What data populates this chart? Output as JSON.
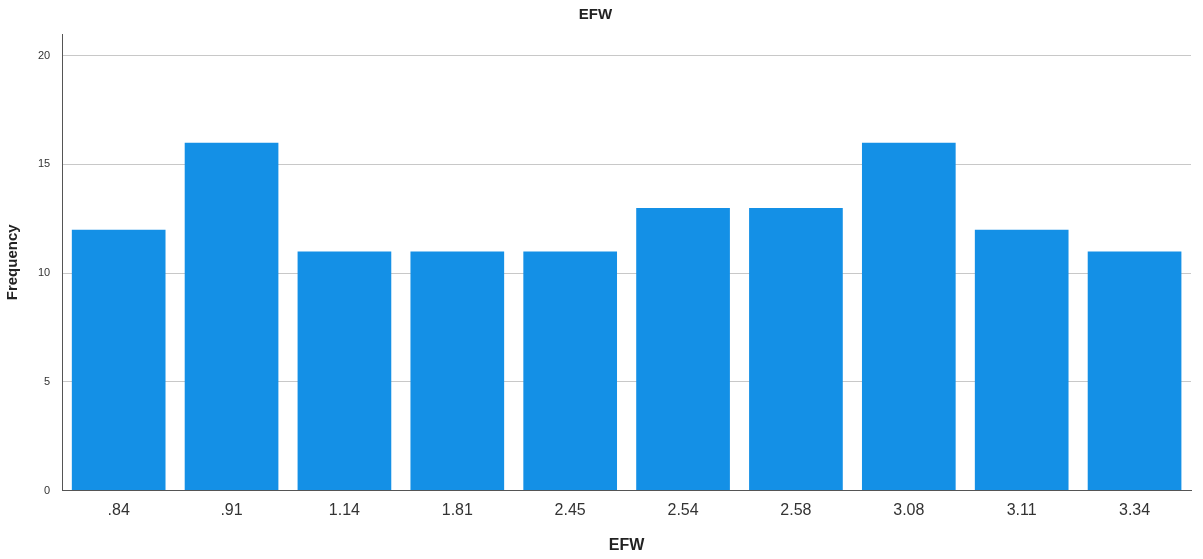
{
  "chart_data": {
    "type": "bar",
    "title": "EFW",
    "xlabel": "EFW",
    "ylabel": "Frequency",
    "categories": [
      ".84",
      ".91",
      "1.14",
      "1.81",
      "2.45",
      "2.54",
      "2.58",
      "3.08",
      "3.11",
      "3.34"
    ],
    "values": [
      12,
      16,
      11,
      11,
      11,
      13,
      13,
      16,
      12,
      11
    ],
    "color": "#1490e6",
    "ylim": [
      0,
      21
    ],
    "yticks": [
      0,
      5,
      10,
      15,
      20
    ],
    "grid": "y",
    "legend": false
  }
}
